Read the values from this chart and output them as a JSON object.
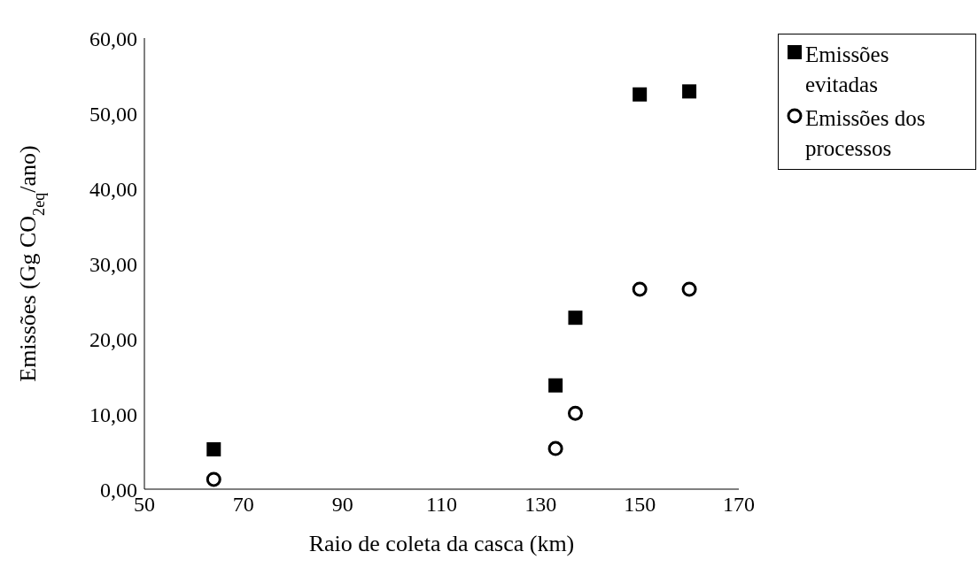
{
  "chart_data": {
    "type": "scatter",
    "xlabel": "Raio de coleta da casca (km)",
    "ylabel": "Emissões (Gg CO$_{2eq}$/ano)",
    "xlim": [
      50,
      170
    ],
    "xticks": [
      50,
      70,
      90,
      110,
      130,
      150,
      170
    ],
    "ylim": [
      0,
      60
    ],
    "yticks": [
      {
        "value": 0,
        "label": "0,00"
      },
      {
        "value": 10,
        "label": "10,00"
      },
      {
        "value": 20,
        "label": "20,00"
      },
      {
        "value": 30,
        "label": "30,00"
      },
      {
        "value": 40,
        "label": "40,00"
      },
      {
        "value": 50,
        "label": "50,00"
      },
      {
        "value": 60,
        "label": "60,00"
      }
    ],
    "grid": false,
    "legend": "top right",
    "series": [
      {
        "name": "Emissões evitadas",
        "color": "#000000",
        "marker": "square",
        "x": [
          64,
          133,
          137,
          150,
          160
        ],
        "values": [
          5.3,
          13.8,
          22.8,
          52.5,
          52.9
        ]
      },
      {
        "name": "Emissões dos processos",
        "color": "#000000",
        "marker": "circle",
        "x": [
          64,
          133,
          137,
          150,
          160
        ],
        "values": [
          1.3,
          5.4,
          10.1,
          26.6,
          26.6
        ]
      }
    ]
  }
}
